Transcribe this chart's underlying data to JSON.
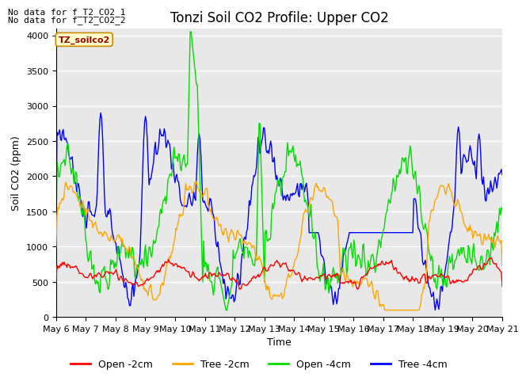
{
  "title": "Tonzi Soil CO2 Profile: Upper CO2",
  "xlabel": "Time",
  "ylabel": "Soil CO2 (ppm)",
  "ylim": [
    0,
    4100
  ],
  "xlim": [
    0,
    15
  ],
  "xtick_labels": [
    "May 6",
    "May 7",
    "May 8",
    "May 9",
    "May 10",
    "May 11",
    "May 12",
    "May 13",
    "May 14",
    "May 15",
    "May 16",
    "May 17",
    "May 18",
    "May 19",
    "May 20",
    "May 21"
  ],
  "xtick_positions": [
    0,
    1,
    2,
    3,
    4,
    5,
    6,
    7,
    8,
    9,
    10,
    11,
    12,
    13,
    14,
    15
  ],
  "ytick_positions": [
    0,
    500,
    1000,
    1500,
    2000,
    2500,
    3000,
    3500,
    4000
  ],
  "colors": {
    "open_2cm": "#ff0000",
    "tree_2cm": "#ffa500",
    "open_4cm": "#00dd00",
    "tree_4cm": "#0000ff"
  },
  "legend_labels": [
    "Open -2cm",
    "Tree -2cm",
    "Open -4cm",
    "Tree -4cm"
  ],
  "annotation_line1": "No data for f_T2_CO2_1",
  "annotation_line2": "No data for f_T2_CO2_2",
  "inset_label": "TZ_soilco2",
  "background_color": "#e8e8e8",
  "linewidth": 1.0,
  "title_fontsize": 12,
  "axis_label_fontsize": 9,
  "tick_fontsize": 8,
  "legend_fontsize": 9,
  "annotation_fontsize": 8
}
